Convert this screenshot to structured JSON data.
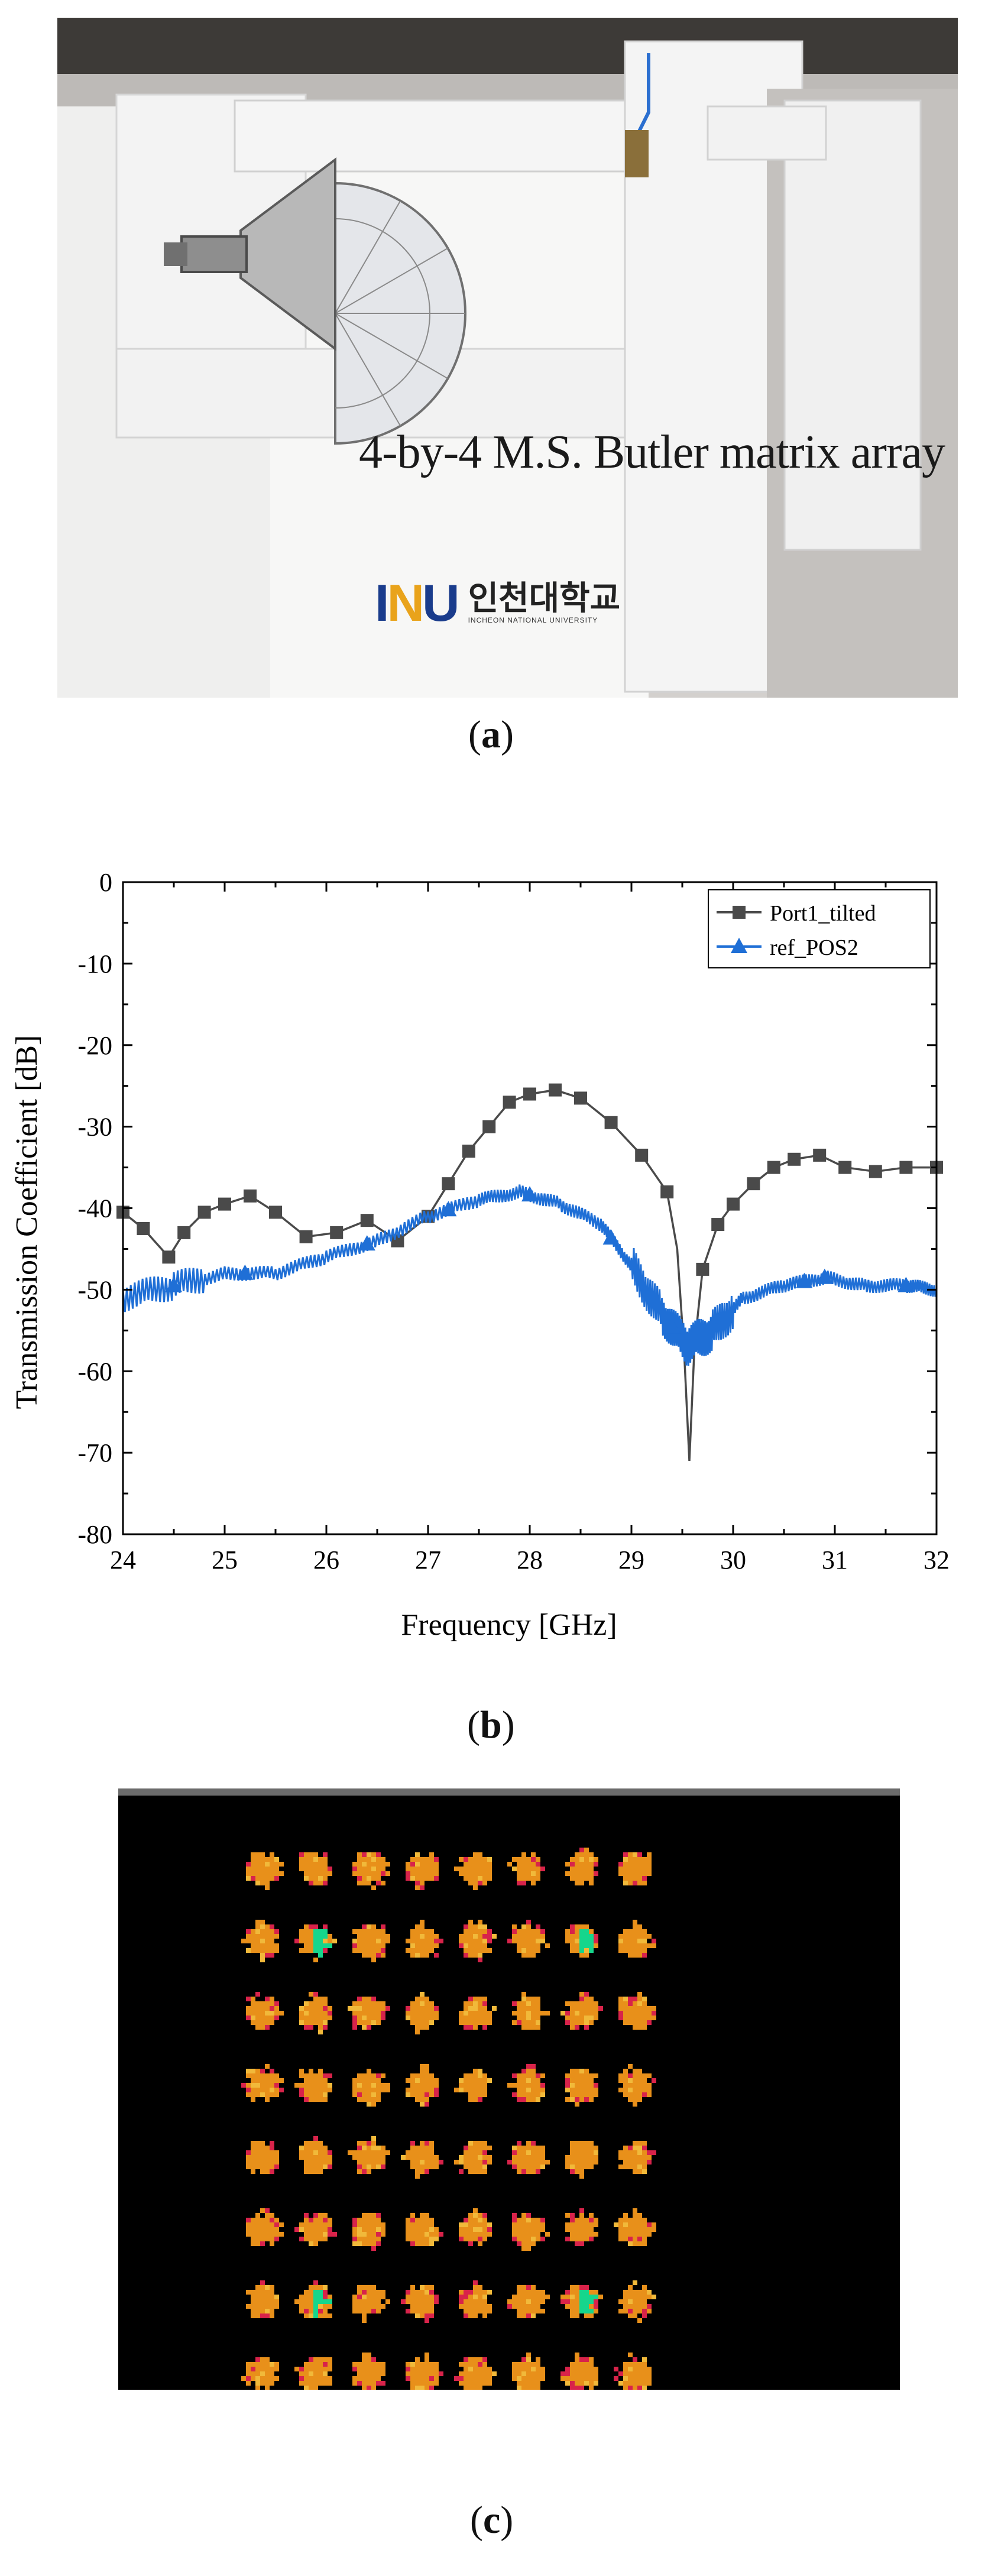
{
  "panel_a": {
    "caption": "4-by-4 M.S. Butler matrix array",
    "logo": {
      "mark": "INU",
      "korean": "인천대학교",
      "english": "INCHEON NATIONAL UNIVERSITY"
    },
    "label_open": "(",
    "label_letter": "a",
    "label_close": ")"
  },
  "panel_b": {
    "label_open": "(",
    "label_letter": "b",
    "label_close": ")"
  },
  "panel_c": {
    "label_open": "(",
    "label_letter": "c",
    "label_close": ")"
  },
  "colors": {
    "port1": "#4a4a4a",
    "ref": "#1f6fd6",
    "heat_orange": "#e8901a",
    "heat_red": "#d8234a",
    "heat_green": "#16d68c"
  },
  "chart_data": {
    "type": "line",
    "xlabel": "Frequency [GHz]",
    "ylabel": "Transmission Coefficient [dB]",
    "xlim": [
      24,
      32
    ],
    "ylim": [
      -80,
      0
    ],
    "xticks": [
      24,
      25,
      26,
      27,
      28,
      29,
      30,
      31,
      32
    ],
    "yticks": [
      0,
      -10,
      -20,
      -30,
      -40,
      -50,
      -60,
      -70,
      -80
    ],
    "legend_position": "top-right",
    "series": [
      {
        "name": "Port1_tilted",
        "marker": "square",
        "x": [
          24.0,
          24.2,
          24.45,
          24.6,
          24.8,
          25.0,
          25.25,
          25.5,
          25.8,
          26.1,
          26.4,
          26.7,
          27.0,
          27.2,
          27.4,
          27.6,
          27.8,
          28.0,
          28.25,
          28.5,
          28.8,
          29.1,
          29.35,
          29.45,
          29.52,
          29.57,
          29.62,
          29.7,
          29.85,
          30.0,
          30.2,
          30.4,
          30.6,
          30.85,
          31.1,
          31.4,
          31.7,
          32.0
        ],
        "y": [
          -40.5,
          -42.5,
          -46.0,
          -43.0,
          -40.5,
          -39.5,
          -38.5,
          -40.5,
          -43.5,
          -43.0,
          -41.5,
          -44.0,
          -41.0,
          -37.0,
          -33.0,
          -30.0,
          -27.0,
          -26.0,
          -25.5,
          -26.5,
          -29.5,
          -33.5,
          -38.0,
          -45.0,
          -58.0,
          -71.0,
          -57.0,
          -47.5,
          -42.0,
          -39.5,
          -37.0,
          -35.0,
          -34.0,
          -33.5,
          -35.0,
          -35.5,
          -35.0,
          -35.0
        ]
      },
      {
        "name": "ref_POS2",
        "marker": "triangle",
        "x": [
          24.0,
          24.5,
          25.0,
          25.5,
          26.0,
          26.5,
          27.0,
          27.5,
          27.9,
          28.3,
          28.7,
          29.0,
          29.3,
          29.55,
          29.8,
          30.1,
          30.5,
          30.9,
          31.3,
          31.7,
          32.0
        ],
        "y": [
          -51.0,
          -49.5,
          -48.0,
          -48.0,
          -46.0,
          -44.0,
          -41.0,
          -39.0,
          -38.0,
          -39.5,
          -42.0,
          -47.0,
          -53.0,
          -57.0,
          -55.0,
          -51.0,
          -49.5,
          -48.5,
          -49.5,
          -49.5,
          -50.0
        ]
      }
    ]
  },
  "heatmap": {
    "grid": "8x8",
    "rows": 8,
    "cols": 8,
    "green_cells": [
      [
        1,
        1
      ],
      [
        1,
        6
      ],
      [
        6,
        1
      ],
      [
        6,
        6
      ]
    ]
  }
}
